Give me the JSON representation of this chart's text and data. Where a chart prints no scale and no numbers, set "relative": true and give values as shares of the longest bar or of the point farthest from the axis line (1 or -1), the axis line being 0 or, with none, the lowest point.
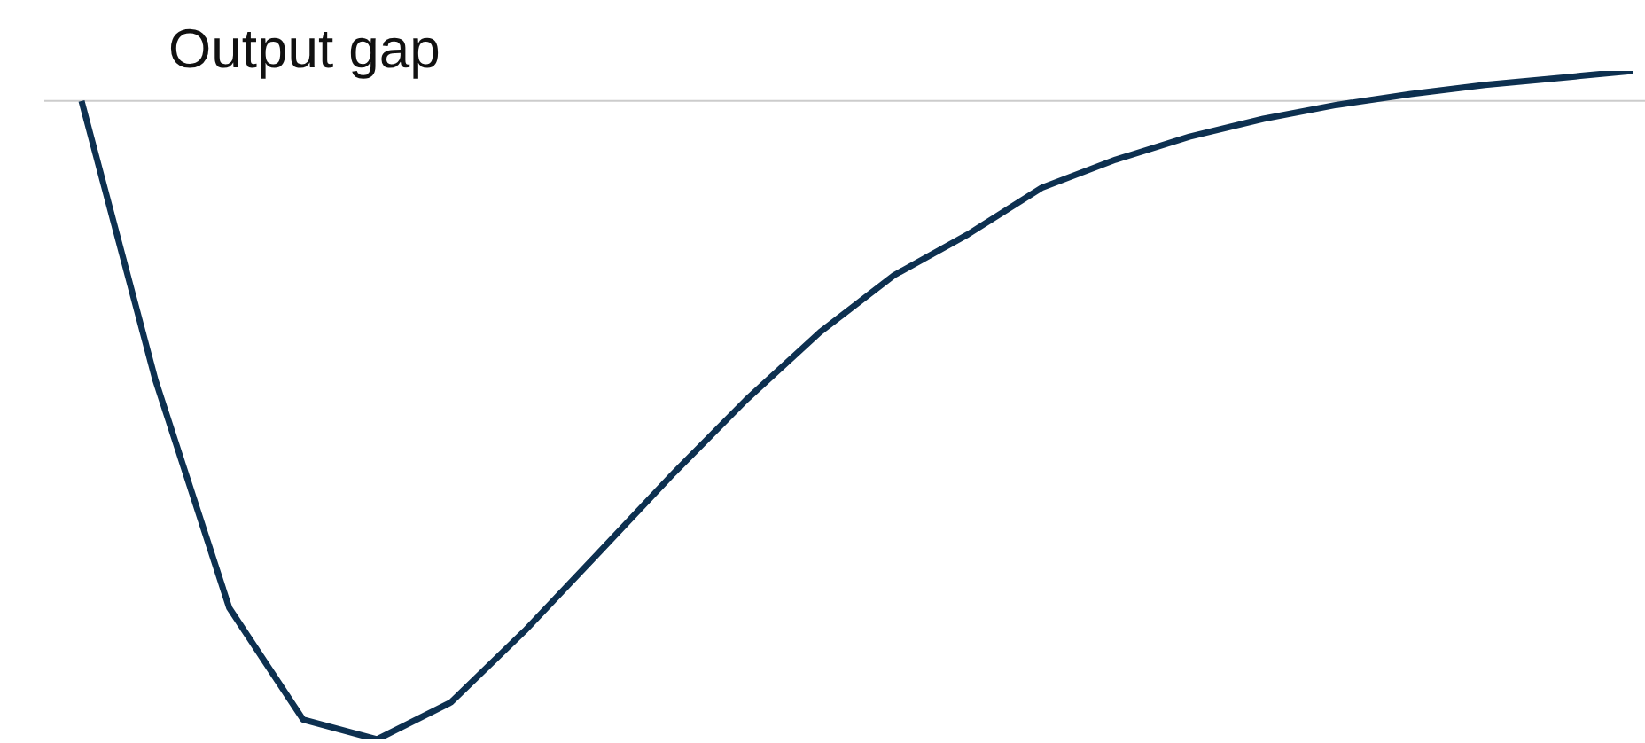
{
  "chart_data": {
    "type": "line",
    "title": "Output gap",
    "relative": true,
    "marker": "none",
    "line_style": "solid",
    "categories": [
      null,
      null,
      null,
      null,
      null,
      null,
      null,
      null,
      null,
      null,
      null,
      null,
      null,
      null,
      null,
      null,
      null,
      null,
      null,
      null,
      null,
      null
    ],
    "series": [
      {
        "color": "#0d3050",
        "values": [
          0,
          -0.437,
          -0.794,
          -0.969,
          -1,
          -0.942,
          -0.83,
          -0.708,
          -0.585,
          -0.468,
          -0.362,
          -0.273,
          -0.209,
          -0.136,
          -0.092,
          -0.056,
          -0.028,
          -0.006,
          0.011,
          0.025,
          0.036,
          0.047
        ]
      }
    ]
  }
}
